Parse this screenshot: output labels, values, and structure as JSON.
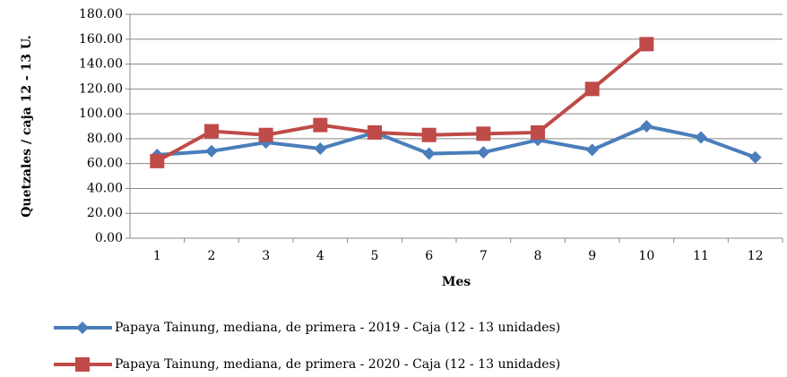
{
  "chart_data": {
    "type": "line",
    "y_label": "Quetzales / caja 12 - 13 U.",
    "x_label": "Mes",
    "categories": [
      "1",
      "2",
      "3",
      "4",
      "5",
      "6",
      "7",
      "8",
      "9",
      "10",
      "11",
      "12"
    ],
    "series": [
      {
        "name": "Papaya Tainung, mediana, de primera - 2019 - Caja (12 - 13 unidades)",
        "color": "#4a7ebb",
        "marker": "diamond",
        "values": [
          67,
          70,
          77,
          72,
          85,
          68,
          69,
          79,
          71,
          90,
          81,
          65
        ]
      },
      {
        "name": "Papaya Tainung, mediana, de primera - 2020 - Caja (12 - 13 unidades)",
        "color": "#be4b48",
        "marker": "square",
        "values": [
          62,
          86,
          83,
          91,
          85,
          83,
          84,
          85,
          120,
          156,
          null,
          null
        ]
      }
    ],
    "ylim": [
      0,
      180
    ],
    "yticks": [
      {
        "value": 0,
        "label": "0.00"
      },
      {
        "value": 20,
        "label": "20.00"
      },
      {
        "value": 40,
        "label": "40.00"
      },
      {
        "value": 60,
        "label": "60.00"
      },
      {
        "value": 80,
        "label": "80.00"
      },
      {
        "value": 100,
        "label": "100.00"
      },
      {
        "value": 120,
        "label": "120.00"
      },
      {
        "value": 140,
        "label": "140.00"
      },
      {
        "value": 160,
        "label": "160.00"
      },
      {
        "value": 180,
        "label": "180.00"
      }
    ],
    "grid": true
  }
}
